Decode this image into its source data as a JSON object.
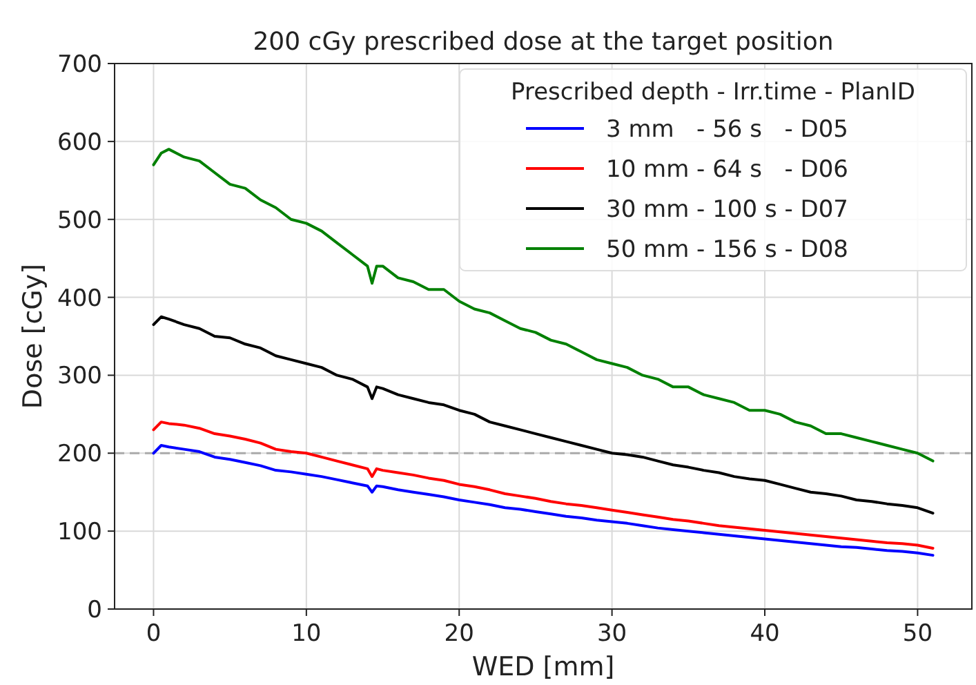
{
  "chart_data": {
    "type": "line",
    "title": "200 cGy prescribed dose at the target position",
    "xlabel": "WED [mm]",
    "ylabel": "Dose [cGy]",
    "legend_title": "Prescribed depth - Irr.time - PlanID",
    "legend": "top right",
    "grid": true,
    "line_style": "solid",
    "marker": "none",
    "x": [
      0,
      0.5,
      1,
      2,
      3,
      4,
      5,
      6,
      7,
      8,
      9,
      10,
      11,
      12,
      13,
      14,
      14.3,
      14.6,
      15,
      16,
      17,
      18,
      19,
      20,
      21,
      22,
      23,
      24,
      25,
      26,
      27,
      28,
      29,
      30,
      31,
      32,
      33,
      34,
      35,
      36,
      37,
      38,
      39,
      40,
      41,
      42,
      43,
      44,
      45,
      46,
      47,
      48,
      49,
      50,
      51
    ],
    "xlim": [
      -2.55,
      53.55
    ],
    "xticks": [
      0,
      10,
      20,
      30,
      40,
      50
    ],
    "ylim": [
      0,
      700
    ],
    "yticks": [
      0,
      100,
      200,
      300,
      400,
      500,
      600,
      700
    ],
    "ref_lines": [
      {
        "axis": "y",
        "value": 200,
        "color": "#aaaaaa",
        "line_style": "dashed"
      }
    ],
    "series": [
      {
        "name": "3 mm   - 56 s   - D05",
        "color": "#0000ff",
        "values": [
          200,
          210,
          208,
          205,
          202,
          195,
          192,
          188,
          184,
          178,
          176,
          173,
          170,
          166,
          162,
          158,
          150,
          158,
          157,
          153,
          150,
          147,
          144,
          140,
          137,
          134,
          130,
          128,
          125,
          122,
          119,
          117,
          114,
          112,
          110,
          107,
          104,
          102,
          100,
          98,
          96,
          94,
          92,
          90,
          88,
          86,
          84,
          82,
          80,
          79,
          77,
          75,
          74,
          72,
          69
        ]
      },
      {
        "name": "10 mm - 64 s   - D06",
        "color": "#ff0000",
        "values": [
          230,
          240,
          238,
          236,
          232,
          225,
          222,
          218,
          213,
          205,
          202,
          200,
          195,
          190,
          185,
          180,
          170,
          180,
          178,
          175,
          172,
          168,
          165,
          160,
          157,
          153,
          148,
          145,
          142,
          138,
          135,
          133,
          130,
          127,
          124,
          121,
          118,
          115,
          113,
          110,
          107,
          105,
          103,
          101,
          99,
          97,
          95,
          93,
          91,
          89,
          87,
          85,
          84,
          82,
          78
        ]
      },
      {
        "name": "30 mm - 100 s - D07",
        "color": "#000000",
        "values": [
          365,
          375,
          372,
          365,
          360,
          350,
          348,
          340,
          335,
          325,
          320,
          315,
          310,
          300,
          295,
          285,
          270,
          285,
          283,
          275,
          270,
          265,
          262,
          255,
          250,
          240,
          235,
          230,
          225,
          220,
          215,
          210,
          205,
          200,
          198,
          195,
          190,
          185,
          182,
          178,
          175,
          170,
          167,
          165,
          160,
          155,
          150,
          148,
          145,
          140,
          138,
          135,
          133,
          130,
          123
        ]
      },
      {
        "name": "50 mm - 156 s - D08",
        "color": "#008000",
        "values": [
          570,
          585,
          590,
          580,
          575,
          560,
          545,
          540,
          525,
          515,
          500,
          495,
          485,
          470,
          455,
          440,
          418,
          440,
          440,
          425,
          420,
          410,
          410,
          395,
          385,
          380,
          370,
          360,
          355,
          345,
          340,
          330,
          320,
          315,
          310,
          300,
          295,
          285,
          285,
          275,
          270,
          265,
          255,
          255,
          250,
          240,
          235,
          225,
          225,
          220,
          215,
          210,
          205,
          200,
          190
        ]
      }
    ]
  }
}
